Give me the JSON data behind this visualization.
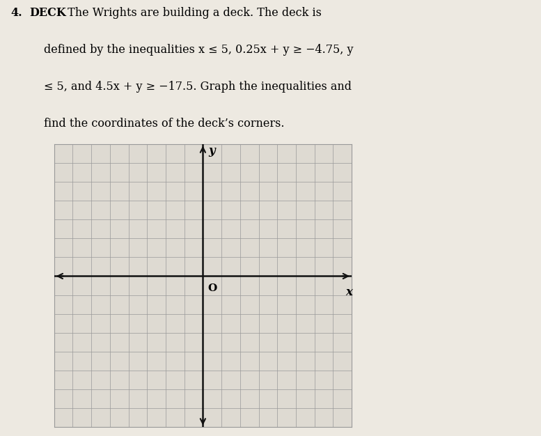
{
  "title_number": "4.",
  "title_bold": "DECK",
  "body_text": " The Wrights are building a deck. The deck is\ndefined by the inequalities x ≤ 5, 0.25x + y ≥ −4.75, y\n≤ 5, and 4.5x + y ≥ −17.5. Graph the inequalities and\nfind the coordinates of the deck’s corners.",
  "bg_color": "#ede9e1",
  "grid_color": "#999999",
  "axis_color": "#111111",
  "grid_bg": "#dedad2",
  "xlim": [
    -8,
    8
  ],
  "ylim": [
    -8,
    7
  ],
  "origin_label": "O",
  "xlabel": "x",
  "ylabel": "y",
  "fig_width": 7.77,
  "fig_height": 6.26
}
